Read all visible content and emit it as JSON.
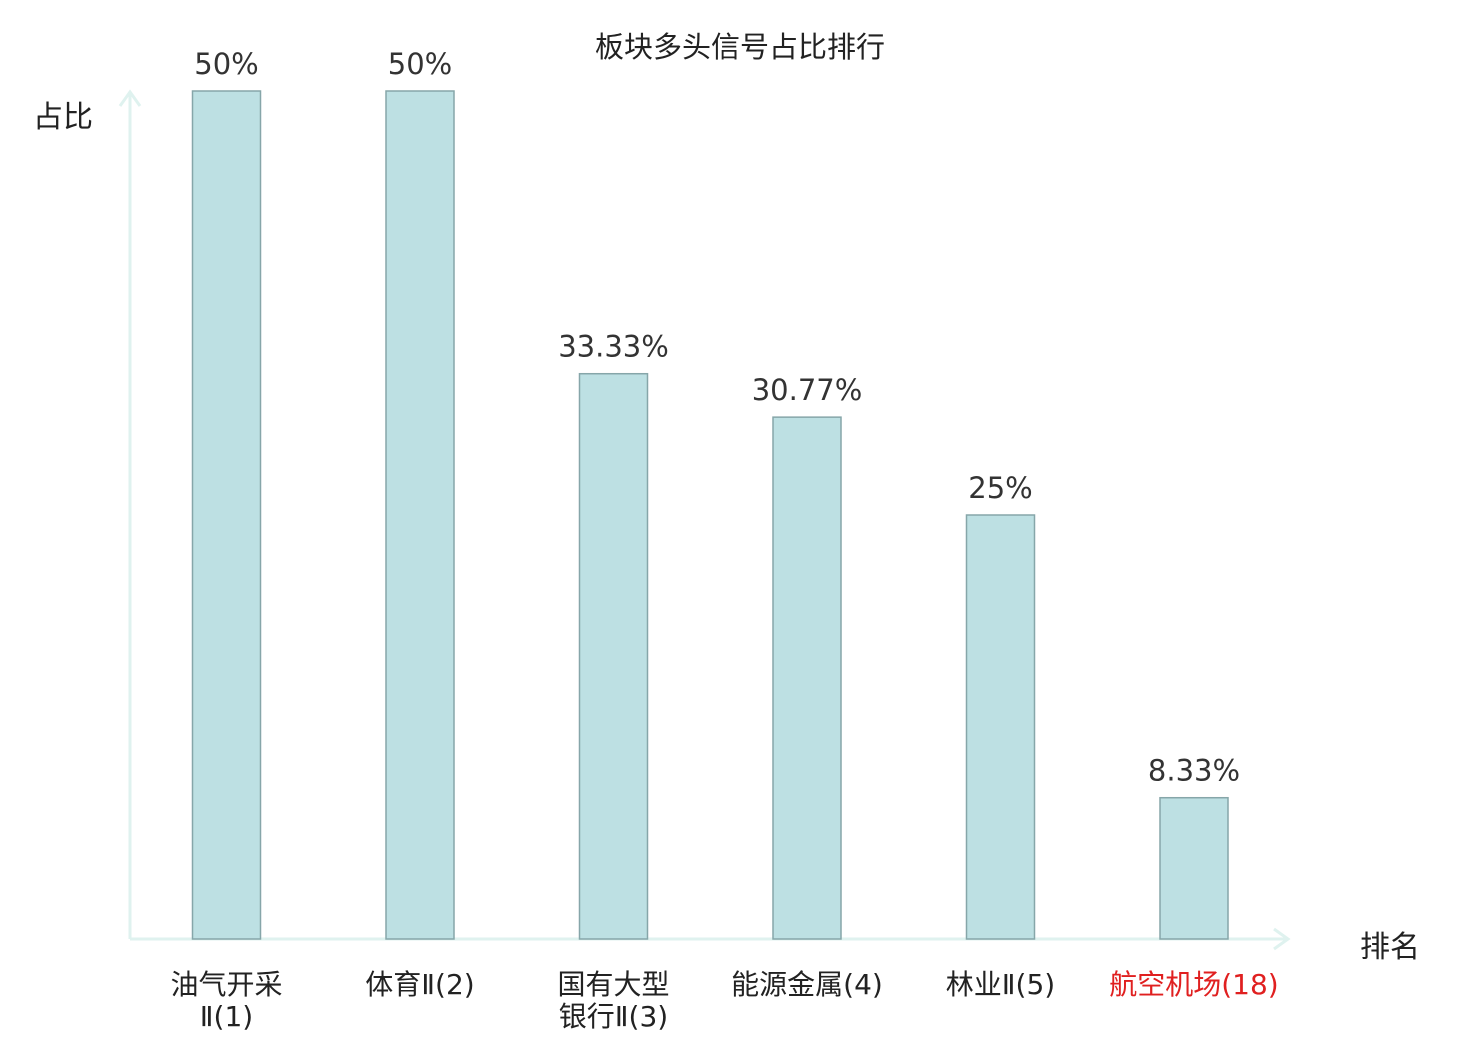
{
  "chart_data": {
    "type": "bar",
    "title": "板块多头信号占比排行",
    "xlabel": "排名",
    "ylabel": "占比",
    "unit": "%",
    "ylim": [
      0,
      50
    ],
    "grid": false,
    "categories": [
      {
        "lines": [
          "油气开采",
          "Ⅱ(1)"
        ]
      },
      {
        "lines": [
          "体育Ⅱ(2)"
        ]
      },
      {
        "lines": [
          "国有大型",
          "银行Ⅱ(3)"
        ]
      },
      {
        "lines": [
          "能源金属(4)"
        ]
      },
      {
        "lines": [
          "林业Ⅱ(5)"
        ]
      },
      {
        "lines": [
          "航空机场(18)"
        ],
        "highlight": true
      }
    ],
    "values": [
      50,
      50,
      33.33,
      30.77,
      25,
      8.33
    ],
    "value_labels": [
      "50%",
      "50%",
      "33.33%",
      "30.77%",
      "25%",
      "8.33%"
    ],
    "colors": {
      "bar_fill": "#bde0e3",
      "bar_stroke": "#86a6a9",
      "axis": "#dff2ef",
      "label_text": "#222222",
      "value_text": "#333333",
      "highlight_text": "#e02020"
    }
  }
}
